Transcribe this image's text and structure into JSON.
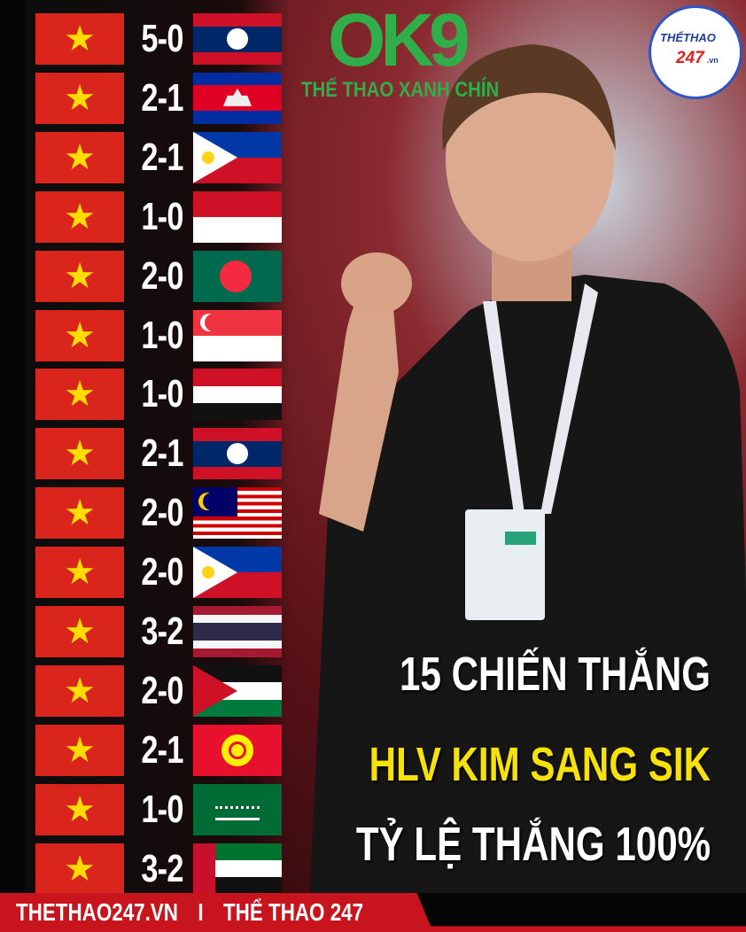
{
  "branding": {
    "watermark": "OK9",
    "watermark_tagline": "THỂ THAO XANH CHÍN",
    "logo_text_1": "THẾTHAO",
    "logo_text_2": "247",
    "logo_text_3": ".vn"
  },
  "headline": {
    "line1": "15 CHIẾN THẮNG",
    "line2": "HLV KIM SANG SIK",
    "line3": "TỶ LỆ THẮNG 100%"
  },
  "footer": {
    "site": "THETHAO247.VN",
    "separator": "I",
    "brand": "THỂ THAO 247"
  },
  "colors": {
    "vietnam_red": "#da251d",
    "star_yellow": "#ffdd00",
    "headline_yellow": "#f6e20a",
    "footer_red": "#c8141c",
    "watermark_green": "#2fae4a"
  },
  "matches": [
    {
      "score": "5-0",
      "opponent_flag": "laos-flag-icon"
    },
    {
      "score": "2-1",
      "opponent_flag": "cambodia-flag-icon"
    },
    {
      "score": "2-1",
      "opponent_flag": "philippines-flag-icon"
    },
    {
      "score": "1-0",
      "opponent_flag": "indonesia-flag-icon"
    },
    {
      "score": "2-0",
      "opponent_flag": "bangladesh-flag-icon"
    },
    {
      "score": "1-0",
      "opponent_flag": "singapore-flag-icon"
    },
    {
      "score": "1-0",
      "opponent_flag": "yemen-flag-icon"
    },
    {
      "score": "2-1",
      "opponent_flag": "laos-flag-icon"
    },
    {
      "score": "2-0",
      "opponent_flag": "malaysia-flag-icon"
    },
    {
      "score": "2-0",
      "opponent_flag": "philippines-flag-icon"
    },
    {
      "score": "3-2",
      "opponent_flag": "thailand-flag-icon"
    },
    {
      "score": "2-0",
      "opponent_flag": "jordan-flag-icon"
    },
    {
      "score": "2-1",
      "opponent_flag": "kyrgyzstan-flag-icon"
    },
    {
      "score": "1-0",
      "opponent_flag": "saudi-arabia-flag-icon"
    },
    {
      "score": "3-2",
      "opponent_flag": "uae-flag-icon"
    }
  ]
}
